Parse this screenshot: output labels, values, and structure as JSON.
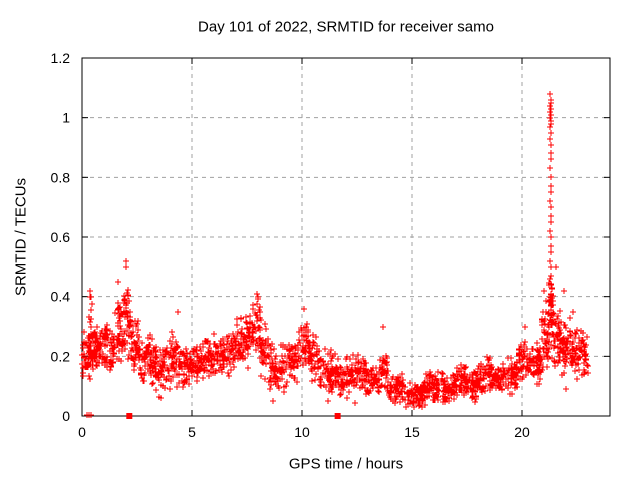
{
  "page": {
    "background_color": "#ffffff",
    "text_color": "#000000"
  },
  "chart_data": {
    "type": "scatter",
    "title": "Day 101 of 2022, SRMTID for receiver samo",
    "xlabel": "GPS time / hours",
    "ylabel": "SRMTID / TECUs",
    "xlim": [
      0,
      24
    ],
    "ylim": [
      0,
      1.2
    ],
    "x_tick_values": [
      0,
      5,
      10,
      15,
      20
    ],
    "x_tick_labels": [
      "0",
      "5",
      "10",
      "15",
      "20"
    ],
    "y_tick_values": [
      0,
      0.2,
      0.4,
      0.6,
      0.8,
      1,
      1.2
    ],
    "y_tick_labels": [
      "0",
      "0.2",
      "0.4",
      "0.6",
      "0.8",
      "1",
      "1.2"
    ],
    "grid": true,
    "grid_style": "dashed",
    "legend": "none",
    "marker": "plus",
    "marker_color": "#ff0000",
    "grid_color": "#a0a0a0",
    "axis_color": "#000000",
    "random_seed": 101,
    "profile_columns": [
      "x_start",
      "x_end",
      "mean_tecu",
      "half_range_tecu",
      "n_points"
    ],
    "profile": [
      [
        0.0,
        0.5,
        0.21,
        0.08,
        55
      ],
      [
        0.3,
        0.5,
        0.3,
        0.1,
        12
      ],
      [
        0.5,
        1.0,
        0.23,
        0.07,
        55
      ],
      [
        1.0,
        1.5,
        0.24,
        0.08,
        55
      ],
      [
        1.5,
        1.9,
        0.28,
        0.1,
        45
      ],
      [
        1.9,
        2.2,
        0.32,
        0.13,
        40
      ],
      [
        2.2,
        2.6,
        0.24,
        0.09,
        40
      ],
      [
        2.6,
        3.2,
        0.19,
        0.08,
        55
      ],
      [
        3.2,
        4.0,
        0.16,
        0.08,
        70
      ],
      [
        4.0,
        4.4,
        0.2,
        0.09,
        40
      ],
      [
        4.4,
        5.0,
        0.16,
        0.07,
        55
      ],
      [
        5.0,
        5.6,
        0.18,
        0.06,
        55
      ],
      [
        5.6,
        6.3,
        0.2,
        0.07,
        60
      ],
      [
        6.3,
        7.0,
        0.21,
        0.07,
        60
      ],
      [
        7.0,
        7.6,
        0.24,
        0.08,
        55
      ],
      [
        7.6,
        8.1,
        0.29,
        0.09,
        50
      ],
      [
        8.1,
        8.5,
        0.23,
        0.09,
        35
      ],
      [
        8.5,
        9.3,
        0.16,
        0.08,
        70
      ],
      [
        9.3,
        9.8,
        0.18,
        0.07,
        45
      ],
      [
        9.8,
        10.3,
        0.24,
        0.08,
        45
      ],
      [
        10.3,
        10.8,
        0.19,
        0.07,
        45
      ],
      [
        10.8,
        11.5,
        0.15,
        0.07,
        60
      ],
      [
        11.5,
        12.2,
        0.13,
        0.06,
        60
      ],
      [
        12.2,
        12.9,
        0.15,
        0.06,
        60
      ],
      [
        12.9,
        13.5,
        0.12,
        0.05,
        55
      ],
      [
        13.5,
        13.9,
        0.15,
        0.07,
        35
      ],
      [
        13.9,
        14.6,
        0.1,
        0.05,
        60
      ],
      [
        14.6,
        15.6,
        0.07,
        0.04,
        85
      ],
      [
        15.6,
        16.4,
        0.1,
        0.05,
        70
      ],
      [
        16.4,
        17.0,
        0.09,
        0.05,
        55
      ],
      [
        17.0,
        17.5,
        0.12,
        0.05,
        45
      ],
      [
        17.5,
        18.0,
        0.1,
        0.05,
        45
      ],
      [
        18.0,
        18.6,
        0.14,
        0.06,
        55
      ],
      [
        18.6,
        19.3,
        0.13,
        0.05,
        60
      ],
      [
        19.3,
        19.8,
        0.14,
        0.06,
        45
      ],
      [
        19.8,
        20.5,
        0.18,
        0.06,
        60
      ],
      [
        20.5,
        20.9,
        0.18,
        0.07,
        40
      ],
      [
        20.9,
        21.2,
        0.27,
        0.1,
        40
      ],
      [
        21.2,
        21.45,
        0.33,
        0.12,
        45
      ],
      [
        21.45,
        21.8,
        0.27,
        0.1,
        45
      ],
      [
        21.8,
        22.2,
        0.23,
        0.09,
        45
      ],
      [
        22.2,
        22.6,
        0.2,
        0.08,
        40
      ],
      [
        22.6,
        23.0,
        0.21,
        0.07,
        40
      ]
    ],
    "spike_points": [
      [
        21.28,
        0.4
      ],
      [
        21.32,
        0.41
      ],
      [
        21.3,
        0.44
      ],
      [
        21.28,
        0.46
      ],
      [
        21.32,
        0.47
      ],
      [
        21.3,
        0.5
      ],
      [
        21.28,
        0.52
      ],
      [
        21.3,
        0.55
      ],
      [
        21.32,
        0.57
      ],
      [
        21.3,
        0.6
      ],
      [
        21.28,
        0.62
      ],
      [
        21.3,
        0.65
      ],
      [
        21.32,
        0.67
      ],
      [
        21.3,
        0.7
      ],
      [
        21.28,
        0.72
      ],
      [
        21.3,
        0.75
      ],
      [
        21.32,
        0.77
      ],
      [
        21.3,
        0.8
      ],
      [
        21.28,
        0.83
      ],
      [
        21.3,
        0.86
      ],
      [
        21.32,
        0.88
      ],
      [
        21.3,
        0.91
      ],
      [
        21.28,
        0.93
      ],
      [
        21.3,
        0.95
      ],
      [
        21.26,
        0.97
      ],
      [
        21.3,
        0.98
      ],
      [
        21.33,
        0.99
      ],
      [
        21.28,
        1.0
      ],
      [
        21.31,
        1.01
      ],
      [
        21.29,
        1.02
      ],
      [
        21.32,
        1.03
      ],
      [
        21.28,
        1.04
      ],
      [
        21.3,
        1.05
      ],
      [
        21.31,
        1.06
      ],
      [
        21.29,
        1.08
      ]
    ],
    "peak_outlier_points": [
      [
        0.35,
        0.4
      ],
      [
        0.38,
        0.42
      ],
      [
        1.62,
        0.45
      ],
      [
        2.0,
        0.5
      ],
      [
        2.02,
        0.52
      ],
      [
        4.35,
        0.35
      ],
      [
        7.95,
        0.41
      ],
      [
        8.0,
        0.4
      ],
      [
        10.1,
        0.36
      ],
      [
        13.7,
        0.3
      ],
      [
        20.15,
        0.3
      ],
      [
        21.0,
        0.42
      ],
      [
        21.55,
        0.5
      ],
      [
        21.9,
        0.42
      ],
      [
        22.3,
        0.35
      ]
    ],
    "low_outlier_points": [
      [
        3.5,
        0.065
      ],
      [
        3.6,
        0.06
      ],
      [
        8.7,
        0.05
      ],
      [
        11.2,
        0.05
      ],
      [
        12.4,
        0.045
      ],
      [
        14.9,
        0.04
      ],
      [
        15.1,
        0.03
      ],
      [
        15.3,
        0.035
      ],
      [
        22.0,
        0.09
      ]
    ],
    "zero_points": [
      [
        0.22,
        0.004
      ],
      [
        0.3,
        0.004
      ],
      [
        0.42,
        0.004
      ]
    ],
    "gap_marker_squares": [
      [
        2.15,
        0
      ],
      [
        11.62,
        0
      ]
    ]
  }
}
